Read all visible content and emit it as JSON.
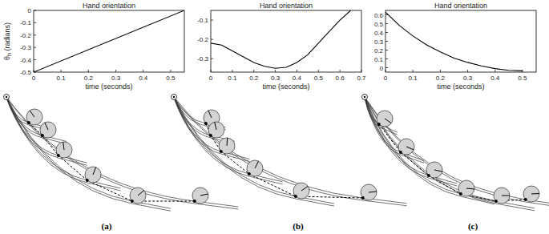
{
  "chart_data": [
    {
      "type": "line",
      "title": "Hand orientation",
      "xlabel": "time (seconds)",
      "ylabel": "θh (radians)",
      "x": [
        0,
        0.55
      ],
      "values": [
        -0.5,
        0
      ],
      "color": "#000000",
      "xlim": [
        0,
        0.55
      ],
      "ylim": [
        -0.5,
        0
      ],
      "xticks": [
        0,
        0.1,
        0.2,
        0.3,
        0.4,
        0.5
      ],
      "yticks": [
        -0.5,
        -0.4,
        -0.3,
        -0.2,
        -0.1,
        0
      ]
    },
    {
      "type": "line",
      "title": "Hand orientation",
      "xlabel": "time (seconds)",
      "x": [
        0,
        0.05,
        0.1,
        0.15,
        0.2,
        0.25,
        0.3,
        0.35,
        0.4,
        0.45,
        0.5,
        0.55,
        0.6,
        0.65
      ],
      "values": [
        -0.22,
        -0.23,
        -0.26,
        -0.29,
        -0.32,
        -0.34,
        -0.35,
        -0.345,
        -0.32,
        -0.28,
        -0.22,
        -0.16,
        -0.1,
        -0.05
      ],
      "color": "#000000",
      "xlim": [
        0,
        0.7
      ],
      "ylim": [
        -0.37,
        -0.05
      ],
      "xticks": [
        0,
        0.1,
        0.2,
        0.3,
        0.4,
        0.5,
        0.6,
        0.7
      ],
      "yticks": [
        -0.3,
        -0.2,
        -0.1
      ]
    },
    {
      "type": "line",
      "title": "Hand orientation",
      "xlabel": "time (seconds)",
      "x": [
        0,
        0.05,
        0.1,
        0.15,
        0.2,
        0.25,
        0.3,
        0.35,
        0.4,
        0.45,
        0.5
      ],
      "values": [
        0.63,
        0.48,
        0.36,
        0.26,
        0.18,
        0.11,
        0.06,
        0.02,
        -0.01,
        -0.03,
        -0.035
      ],
      "color": "#000000",
      "xlim": [
        0,
        0.55
      ],
      "ylim": [
        -0.05,
        0.65
      ],
      "xticks": [
        0,
        0.1,
        0.2,
        0.3,
        0.4,
        0.5
      ],
      "yticks": [
        0,
        0.1,
        0.2,
        0.3,
        0.4,
        0.5,
        0.6
      ]
    }
  ],
  "panel_labels": [
    "(a)",
    "(b)",
    "(c)"
  ]
}
